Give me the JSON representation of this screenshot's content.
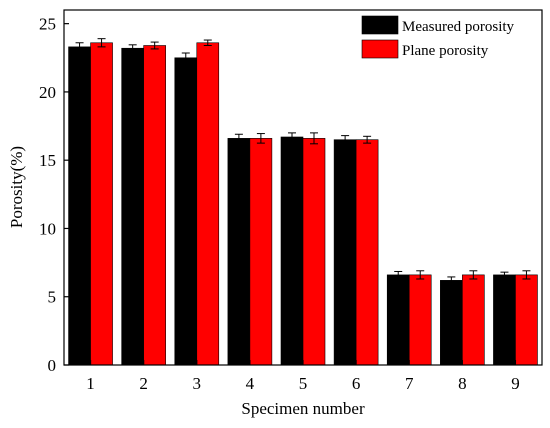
{
  "chart_data": {
    "type": "bar",
    "xlabel": "Specimen number",
    "ylabel": "Porosity(%)",
    "ylim": [
      0,
      26
    ],
    "yticks": [
      0,
      5,
      10,
      15,
      20,
      25
    ],
    "categories": [
      "1",
      "2",
      "3",
      "4",
      "5",
      "6",
      "7",
      "8",
      "9"
    ],
    "series": [
      {
        "name": "Measured porosity",
        "color": "#000000",
        "values": [
          23.3,
          23.2,
          22.5,
          16.6,
          16.7,
          16.5,
          6.6,
          6.2,
          6.6
        ],
        "errors": [
          0.3,
          0.25,
          0.35,
          0.3,
          0.3,
          0.3,
          0.25,
          0.25,
          0.2
        ]
      },
      {
        "name": "Plane porosity",
        "color": "#ff0000",
        "values": [
          23.6,
          23.4,
          23.6,
          16.6,
          16.6,
          16.5,
          6.6,
          6.6,
          6.6
        ],
        "errors": [
          0.3,
          0.25,
          0.2,
          0.35,
          0.4,
          0.25,
          0.3,
          0.3,
          0.3
        ]
      }
    ],
    "legend": "top-right",
    "grid": false
  }
}
